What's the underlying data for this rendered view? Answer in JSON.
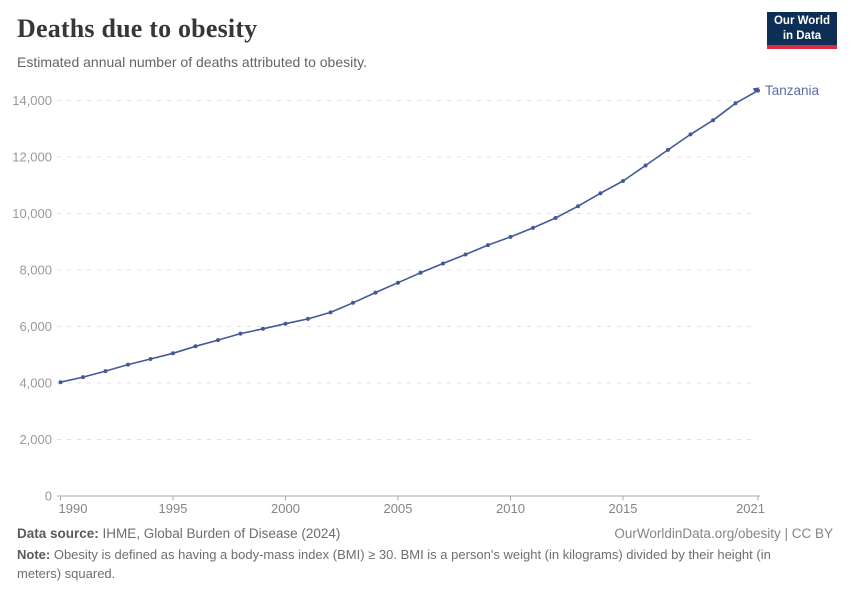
{
  "header": {
    "title": "Deaths due to obesity",
    "subtitle": "Estimated annual number of deaths attributed to obesity.",
    "logo": {
      "line1": "Our World",
      "line2": "in Data",
      "bg_color": "#0e2f55",
      "accent_color": "#dd2c41"
    }
  },
  "chart_data": {
    "type": "line",
    "title": "Deaths due to obesity",
    "entity_label": "Tanzania",
    "x": [
      1990,
      1991,
      1992,
      1993,
      1994,
      1995,
      1996,
      1997,
      1998,
      1999,
      2000,
      2001,
      2002,
      2003,
      2004,
      2005,
      2006,
      2007,
      2008,
      2009,
      2010,
      2011,
      2012,
      2013,
      2014,
      2015,
      2016,
      2017,
      2018,
      2019,
      2020,
      2021
    ],
    "values": [
      4030,
      4210,
      4420,
      4650,
      4850,
      5050,
      5300,
      5520,
      5750,
      5920,
      6100,
      6270,
      6500,
      6840,
      7200,
      7550,
      7900,
      8230,
      8550,
      8880,
      9170,
      9490,
      9840,
      10260,
      10720,
      11150,
      11700,
      12250,
      12800,
      13300,
      13900,
      14350
    ],
    "xticks": [
      1990,
      1995,
      2000,
      2005,
      2010,
      2015,
      2021
    ],
    "yticks": [
      0,
      2000,
      4000,
      6000,
      8000,
      10000,
      12000,
      14000
    ],
    "ylim": [
      0,
      14000
    ],
    "xlabel": "",
    "ylabel": "",
    "grid": "horizontal-dashed",
    "legend_position": "end-of-line",
    "line_color": "#41599a",
    "entity_label_color": "#5b6fa5",
    "grid_color": "#e0e0e0",
    "axis_color": "#a8a8a8",
    "ytick_color": "#999999",
    "xtick_color": "#858585"
  },
  "footer": {
    "data_source_label": "Data source:",
    "data_source_value": " IHME, Global Burden of Disease (2024)",
    "link": "OurWorldinData.org/obesity | CC BY",
    "note_label": "Note:",
    "note_value": " Obesity is defined as having a body-mass index (BMI) ≥ 30. BMI is a person's weight (in kilograms) divided by their height (in meters) squared."
  }
}
